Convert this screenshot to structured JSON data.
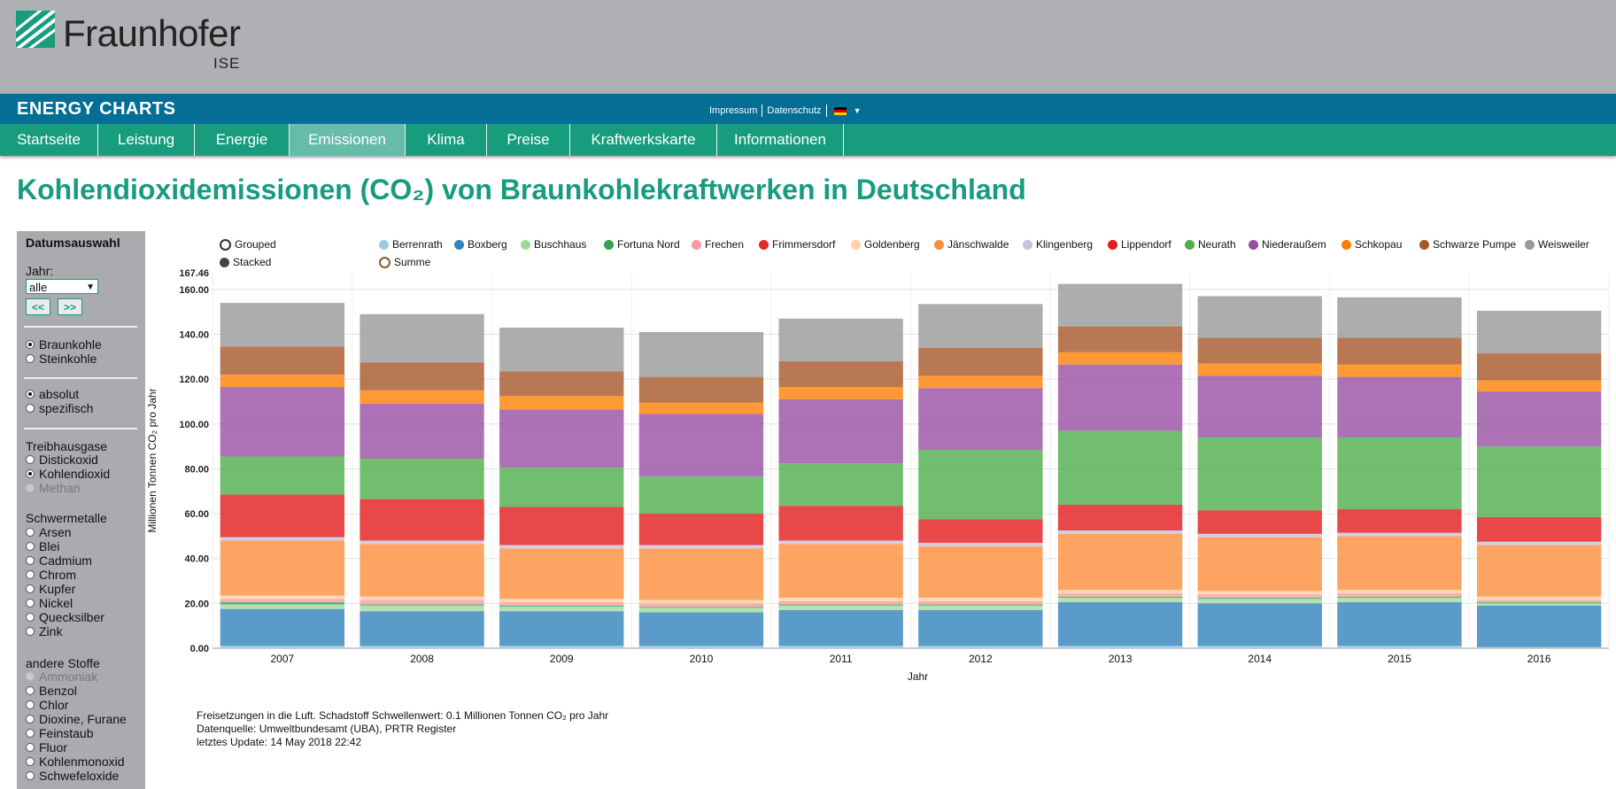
{
  "header": {
    "logo_name": "Fraunhofer",
    "logo_sub": "ISE",
    "brand": "ENERGY CHARTS",
    "links": [
      "Impressum",
      "Datenschutz"
    ],
    "nav": [
      "Startseite",
      "Leistung",
      "Energie",
      "Emissionen",
      "Klima",
      "Preise",
      "Kraftwerkskarte",
      "Informationen"
    ],
    "active_nav": "Emissionen"
  },
  "page_title": "Kohlendioxidemissionen (CO₂) von Braunkohlekraftwerken in Deutschland",
  "sidebar": {
    "heading": "Datumsauswahl",
    "year_label": "Jahr:",
    "year_value": "alle",
    "prev_label": "<<",
    "next_label": ">>",
    "fuel": [
      "Braunkohle",
      "Steinkohle"
    ],
    "mode": [
      "absolut",
      "spezifisch"
    ],
    "ghg_label": "Treibhausgase",
    "ghg": [
      "Distickoxid",
      "Kohlendioxid",
      "Methan"
    ],
    "metals_label": "Schwermetalle",
    "metals": [
      "Arsen",
      "Blei",
      "Cadmium",
      "Chrom",
      "Kupfer",
      "Nickel",
      "Quecksilber",
      "Zink"
    ],
    "other_label": "andere Stoffe",
    "other": [
      "Ammoniak",
      "Benzol",
      "Chlor",
      "Dioxine, Furane",
      "Feinstaub",
      "Fluor",
      "Kohlenmonoxid",
      "Schwefeloxide"
    ]
  },
  "legend_modes": [
    "Grouped",
    "Stacked"
  ],
  "legend_summe": "Summe",
  "notes": [
    "Freisetzungen in die Luft. Schadstoff Schwellenwert: 0.1 Millionen Tonnen CO₂ pro Jahr",
    "Datenquelle: Umweltbundesamt (UBA), PRTR Register",
    "letztes Update: 14 May 2018 22:42"
  ],
  "chart_data": {
    "type": "bar",
    "stacked": true,
    "xlabel": "Jahr",
    "ylabel": "Millionen Tonnen CO₂ pro Jahr",
    "ylim": [
      0,
      167.46
    ],
    "y_max_label": "167.46",
    "y_ticks": [
      "0.00",
      "20.00",
      "40.00",
      "60.00",
      "80.00",
      "100.00",
      "120.00",
      "140.00",
      "160.00"
    ],
    "grid": true,
    "legend_position": "top",
    "categories": [
      "2007",
      "2008",
      "2009",
      "2010",
      "2011",
      "2012",
      "2013",
      "2014",
      "2015",
      "2016"
    ],
    "series": [
      {
        "name": "Berrenrath",
        "color": "#9ecae1",
        "values": [
          1.0,
          1.0,
          1.0,
          1.0,
          1.0,
          1.0,
          1.0,
          1.0,
          1.0,
          0.5
        ]
      },
      {
        "name": "Boxberg",
        "color": "#3182bd",
        "values": [
          16.5,
          15.5,
          15.5,
          15.0,
          16.0,
          16.0,
          19.5,
          19.0,
          19.5,
          18.5
        ]
      },
      {
        "name": "Buschhaus",
        "color": "#a1d99b",
        "values": [
          2.0,
          2.5,
          2.0,
          2.0,
          2.0,
          2.0,
          2.0,
          2.0,
          2.0,
          1.0
        ]
      },
      {
        "name": "Fortuna Nord",
        "color": "#31a354",
        "values": [
          1.0,
          0.5,
          0.5,
          0.5,
          0.5,
          0.5,
          0.5,
          0.5,
          0.5,
          0.5
        ]
      },
      {
        "name": "Frechen",
        "color": "#fc9aa0",
        "values": [
          1.5,
          2.0,
          1.5,
          1.5,
          1.5,
          1.5,
          1.5,
          1.5,
          1.5,
          1.0
        ]
      },
      {
        "name": "Frimmersdorf",
        "color": "#de2d26",
        "values": [
          0,
          0,
          0,
          0,
          0,
          0,
          0,
          0,
          0,
          0
        ]
      },
      {
        "name": "Goldenberg",
        "color": "#fdd0a2",
        "values": [
          1.5,
          1.5,
          1.5,
          1.5,
          1.5,
          1.5,
          1.5,
          1.5,
          1.5,
          1.5
        ]
      },
      {
        "name": "Jänschwalde",
        "color": "#fd8d3c",
        "values": [
          24.5,
          23.5,
          22.5,
          23.0,
          24.0,
          23.0,
          25.0,
          24.0,
          24.0,
          23.0
        ]
      },
      {
        "name": "Klingenberg",
        "color": "#cbc0e0",
        "values": [
          1.5,
          1.5,
          1.5,
          1.5,
          1.5,
          1.5,
          1.5,
          1.5,
          1.5,
          1.5
        ]
      },
      {
        "name": "Lippendorf",
        "color": "#e41a1c",
        "values": [
          19.0,
          18.5,
          17.0,
          14.0,
          15.5,
          10.5,
          11.5,
          10.5,
          10.5,
          11.0
        ]
      },
      {
        "name": "Neurath",
        "color": "#4daf4a",
        "values": [
          17.0,
          18.0,
          17.5,
          16.5,
          19.0,
          31.0,
          33.0,
          32.5,
          32.0,
          31.5
        ]
      },
      {
        "name": "Niederaußem",
        "color": "#984ea3",
        "values": [
          31.0,
          24.5,
          26.0,
          28.0,
          28.5,
          27.5,
          29.5,
          27.5,
          27.0,
          24.5
        ]
      },
      {
        "name": "Schkopau",
        "color": "#ff7f00",
        "values": [
          5.5,
          6.0,
          6.0,
          5.0,
          5.5,
          5.5,
          5.5,
          5.5,
          5.5,
          5.0
        ]
      },
      {
        "name": "Schwarze Pumpe",
        "color": "#a65628",
        "values": [
          12.5,
          12.5,
          11.0,
          11.5,
          11.5,
          12.5,
          11.5,
          11.5,
          12.0,
          12.0
        ]
      },
      {
        "name": "Weisweiler",
        "color": "#999999",
        "values": [
          19.5,
          21.5,
          19.5,
          20.0,
          19.0,
          19.5,
          19.0,
          18.5,
          18.0,
          19.0
        ]
      }
    ]
  }
}
